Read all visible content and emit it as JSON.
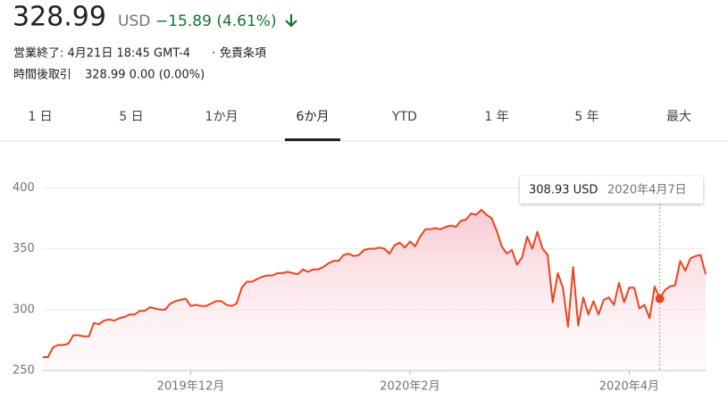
{
  "header": {
    "price": "328.99",
    "currency": "USD",
    "change": "−15.89 (4.61%)",
    "status": "営業終了: 4月21日 18:45 GMT-4",
    "separator": "·",
    "disclaimer": "免責条項",
    "after_hours_label": "時間後取引",
    "after_hours_value": "328.99 0.00 (0.00%)"
  },
  "tabs": {
    "items": [
      "1 日",
      "5 日",
      "1か月",
      "6か月",
      "YTD",
      "1 年",
      "5 年",
      "最大"
    ],
    "selected": 3
  },
  "chart_data": {
    "type": "line",
    "color": "#e8461e",
    "grid": true,
    "values": [
      261,
      261,
      269,
      271,
      271,
      272,
      279,
      279,
      278,
      278,
      289,
      288,
      291,
      292,
      291,
      293,
      294,
      296,
      296,
      299,
      299,
      302,
      301,
      300,
      300,
      305,
      307,
      308,
      309,
      303,
      304,
      303,
      303,
      305,
      307,
      307,
      304,
      303,
      305,
      318,
      323,
      323,
      325,
      327,
      328,
      328,
      330,
      330,
      331,
      330,
      329,
      333,
      331,
      333,
      333,
      335,
      338,
      340,
      340,
      345,
      346,
      344,
      345,
      349,
      350,
      350,
      351,
      350,
      346,
      353,
      355,
      351,
      356,
      352,
      360,
      366,
      366,
      367,
      366,
      368,
      369,
      368,
      373,
      374,
      379,
      378,
      382,
      378,
      375,
      365,
      352,
      346,
      349,
      337,
      343,
      360,
      350,
      364,
      350,
      345,
      306,
      330,
      318,
      286,
      335,
      287,
      310,
      296,
      307,
      296,
      308,
      310,
      304,
      322,
      306,
      318,
      318,
      301,
      304,
      293,
      319,
      308.93,
      316,
      319,
      320,
      340,
      332,
      342,
      344,
      345,
      329
    ],
    "xlim": [
      0,
      130
    ],
    "xticks": [
      {
        "value": 29,
        "label": "2019年12月"
      },
      {
        "value": 72,
        "label": "2020年2月"
      },
      {
        "value": 115,
        "label": "2020年4月"
      }
    ],
    "ylim": [
      250,
      415
    ],
    "yticks": [
      250,
      300,
      350,
      400
    ],
    "tooltip": {
      "x": 121,
      "label": "308.93 USD",
      "date": "2020年4月7日"
    }
  }
}
